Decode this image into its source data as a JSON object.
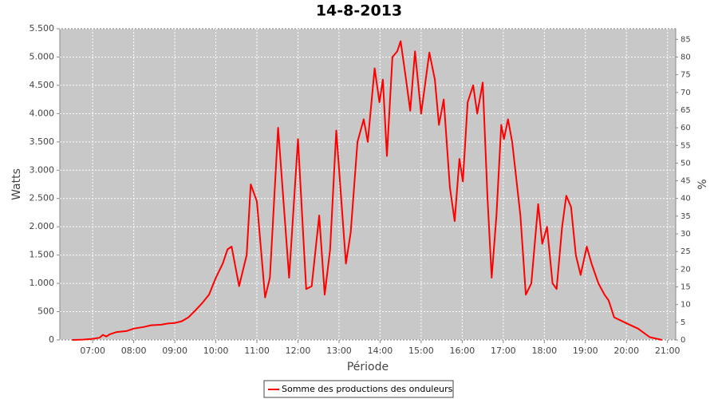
{
  "chart_data": {
    "type": "line",
    "title": "14-8-2013",
    "x_label": "Période",
    "y_label": "Watts",
    "y2_label": "%",
    "xlim": [
      "06:12",
      "21:12"
    ],
    "xticks": [
      "07:00",
      "08:00",
      "09:00",
      "10:00",
      "11:00",
      "12:00",
      "13:00",
      "14:00",
      "15:00",
      "16:00",
      "17:00",
      "18:00",
      "19:00",
      "20:00",
      "21:00"
    ],
    "ylim": [
      0,
      5500
    ],
    "yticks": [
      {
        "value": 0,
        "label": "0"
      },
      {
        "value": 500,
        "label": "500"
      },
      {
        "value": 1000,
        "label": "1.000"
      },
      {
        "value": 1500,
        "label": "1.500"
      },
      {
        "value": 2000,
        "label": "2.000"
      },
      {
        "value": 2500,
        "label": "2.500"
      },
      {
        "value": 3000,
        "label": "3.000"
      },
      {
        "value": 3500,
        "label": "3.500"
      },
      {
        "value": 4000,
        "label": "4.000"
      },
      {
        "value": 4500,
        "label": "4.500"
      },
      {
        "value": 5000,
        "label": "5.000"
      },
      {
        "value": 5500,
        "label": "5.500"
      }
    ],
    "y2lim": [
      0,
      88
    ],
    "y2ticks": [
      0,
      5,
      10,
      15,
      20,
      25,
      30,
      35,
      40,
      45,
      50,
      55,
      60,
      65,
      70,
      75,
      80,
      85
    ],
    "grid": true,
    "legend": "bottom",
    "x": [
      "06:30",
      "06:45",
      "07:00",
      "07:10",
      "07:15",
      "07:20",
      "07:25",
      "07:35",
      "07:50",
      "08:00",
      "08:15",
      "08:25",
      "08:40",
      "08:50",
      "09:00",
      "09:10",
      "09:20",
      "09:30",
      "09:40",
      "09:50",
      "10:00",
      "10:10",
      "10:17",
      "10:23",
      "10:34",
      "10:45",
      "10:51",
      "11:00",
      "11:12",
      "11:19",
      "11:31",
      "11:47",
      "12:00",
      "12:12",
      "12:20",
      "12:31",
      "12:39",
      "12:47",
      "12:56",
      "13:10",
      "13:17",
      "13:27",
      "13:36",
      "13:42",
      "13:52",
      "13:59",
      "14:04",
      "14:10",
      "14:18",
      "14:25",
      "14:30",
      "14:38",
      "14:44",
      "14:51",
      "15:00",
      "15:12",
      "15:20",
      "15:26",
      "15:33",
      "15:42",
      "15:49",
      "15:56",
      "16:01",
      "16:08",
      "16:16",
      "16:22",
      "16:30",
      "16:37",
      "16:43",
      "16:50",
      "16:57",
      "17:01",
      "17:07",
      "17:13",
      "17:25",
      "17:33",
      "17:41",
      "17:51",
      "17:57",
      "18:04",
      "18:12",
      "18:18",
      "18:26",
      "18:32",
      "18:39",
      "18:46",
      "18:53",
      "19:02",
      "19:09",
      "19:19",
      "19:28",
      "19:34",
      "19:42",
      "19:59",
      "20:17",
      "20:34",
      "20:52"
    ],
    "series": [
      {
        "name": "Somme des productions des onduleurs",
        "color": "#ff0000",
        "values": [
          0,
          5,
          20,
          40,
          90,
          60,
          100,
          140,
          160,
          200,
          230,
          260,
          270,
          290,
          300,
          330,
          400,
          520,
          650,
          800,
          1100,
          1350,
          1600,
          1650,
          950,
          1500,
          2750,
          2450,
          750,
          1100,
          3750,
          1100,
          3550,
          900,
          950,
          2200,
          800,
          1600,
          3700,
          1350,
          1900,
          3500,
          3900,
          3500,
          4800,
          4200,
          4600,
          3250,
          5000,
          5100,
          5280,
          4600,
          4050,
          5100,
          4000,
          5080,
          4600,
          3800,
          4250,
          2700,
          2100,
          3200,
          2800,
          4200,
          4500,
          4000,
          4550,
          2500,
          1100,
          2200,
          3800,
          3550,
          3900,
          3500,
          2200,
          800,
          1000,
          2400,
          1700,
          2000,
          1000,
          900,
          2000,
          2550,
          2350,
          1500,
          1150,
          1650,
          1350,
          1000,
          800,
          700,
          400,
          300,
          200,
          50,
          0
        ]
      }
    ]
  }
}
